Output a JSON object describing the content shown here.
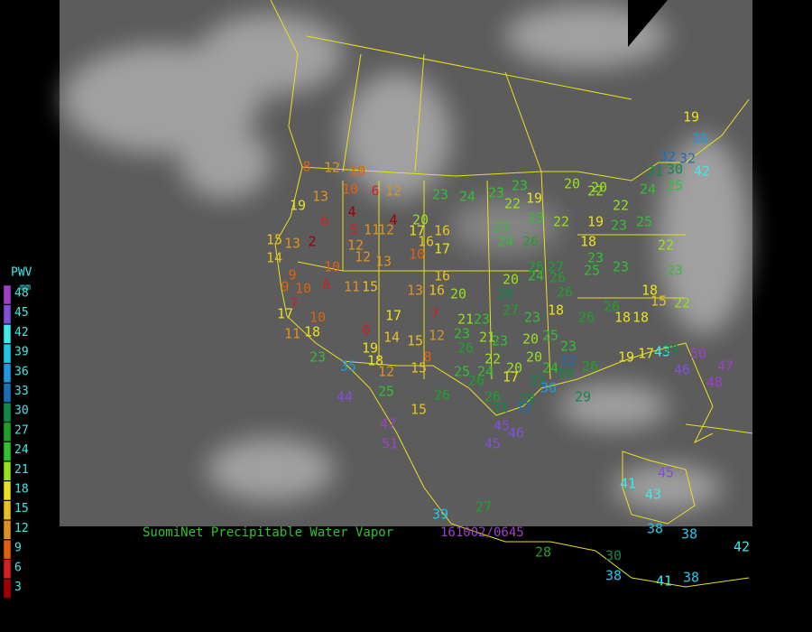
{
  "title": "SuomiNet Precipitable Water Vapor",
  "timestamp": "161002/0645",
  "legend": {
    "title": "PWV",
    "unit": "mm",
    "levels": [
      {
        "value": 48,
        "color": "#a040c8"
      },
      {
        "value": 45,
        "color": "#8050d8"
      },
      {
        "value": 42,
        "color": "#40e8e8"
      },
      {
        "value": 39,
        "color": "#20c8e8"
      },
      {
        "value": 36,
        "color": "#2098e0"
      },
      {
        "value": 33,
        "color": "#1870b8"
      },
      {
        "value": 30,
        "color": "#108848"
      },
      {
        "value": 27,
        "color": "#20a028"
      },
      {
        "value": 24,
        "color": "#30c030"
      },
      {
        "value": 21,
        "color": "#98e020"
      },
      {
        "value": 18,
        "color": "#e8e020"
      },
      {
        "value": 15,
        "color": "#e8c020"
      },
      {
        "value": 12,
        "color": "#e09020"
      },
      {
        "value": 9,
        "color": "#e06010"
      },
      {
        "value": 6,
        "color": "#d02020"
      },
      {
        "value": 3,
        "color": "#a00000"
      }
    ]
  },
  "stations": [
    8,
    12,
    10,
    13,
    10,
    6,
    12,
    19,
    6,
    4,
    4,
    5,
    11,
    12,
    20,
    17,
    16,
    15,
    13,
    2,
    12,
    12,
    13,
    10,
    16,
    17,
    14,
    9,
    10,
    9,
    10,
    6,
    11,
    15,
    13,
    16,
    20,
    16,
    17,
    7,
    10,
    11,
    18,
    6,
    19,
    17,
    14,
    7,
    15,
    12,
    18,
    12,
    8,
    15,
    35,
    23,
    44,
    25,
    15,
    26,
    23,
    24,
    23,
    23,
    19,
    22,
    23,
    24,
    26,
    23,
    22,
    20,
    24,
    26,
    26,
    27,
    26,
    29,
    27,
    23,
    18,
    26,
    26,
    18,
    18,
    18,
    22,
    15,
    23,
    22,
    25,
    23,
    23,
    18,
    19,
    23,
    25,
    22,
    22,
    20,
    20,
    24,
    25,
    19,
    36,
    32,
    32,
    31,
    30,
    42,
    21,
    23,
    23,
    21,
    23,
    20,
    25,
    23,
    26,
    22,
    20,
    24,
    32,
    30,
    26,
    19,
    17,
    43,
    29,
    50,
    46,
    48,
    47,
    25,
    24,
    26,
    20,
    17,
    29,
    31,
    36,
    31,
    32,
    26,
    29,
    45,
    46,
    45,
    47,
    51,
    39,
    27,
    28,
    30,
    38,
    41,
    45,
    43,
    38,
    38,
    42,
    41,
    38
  ]
}
